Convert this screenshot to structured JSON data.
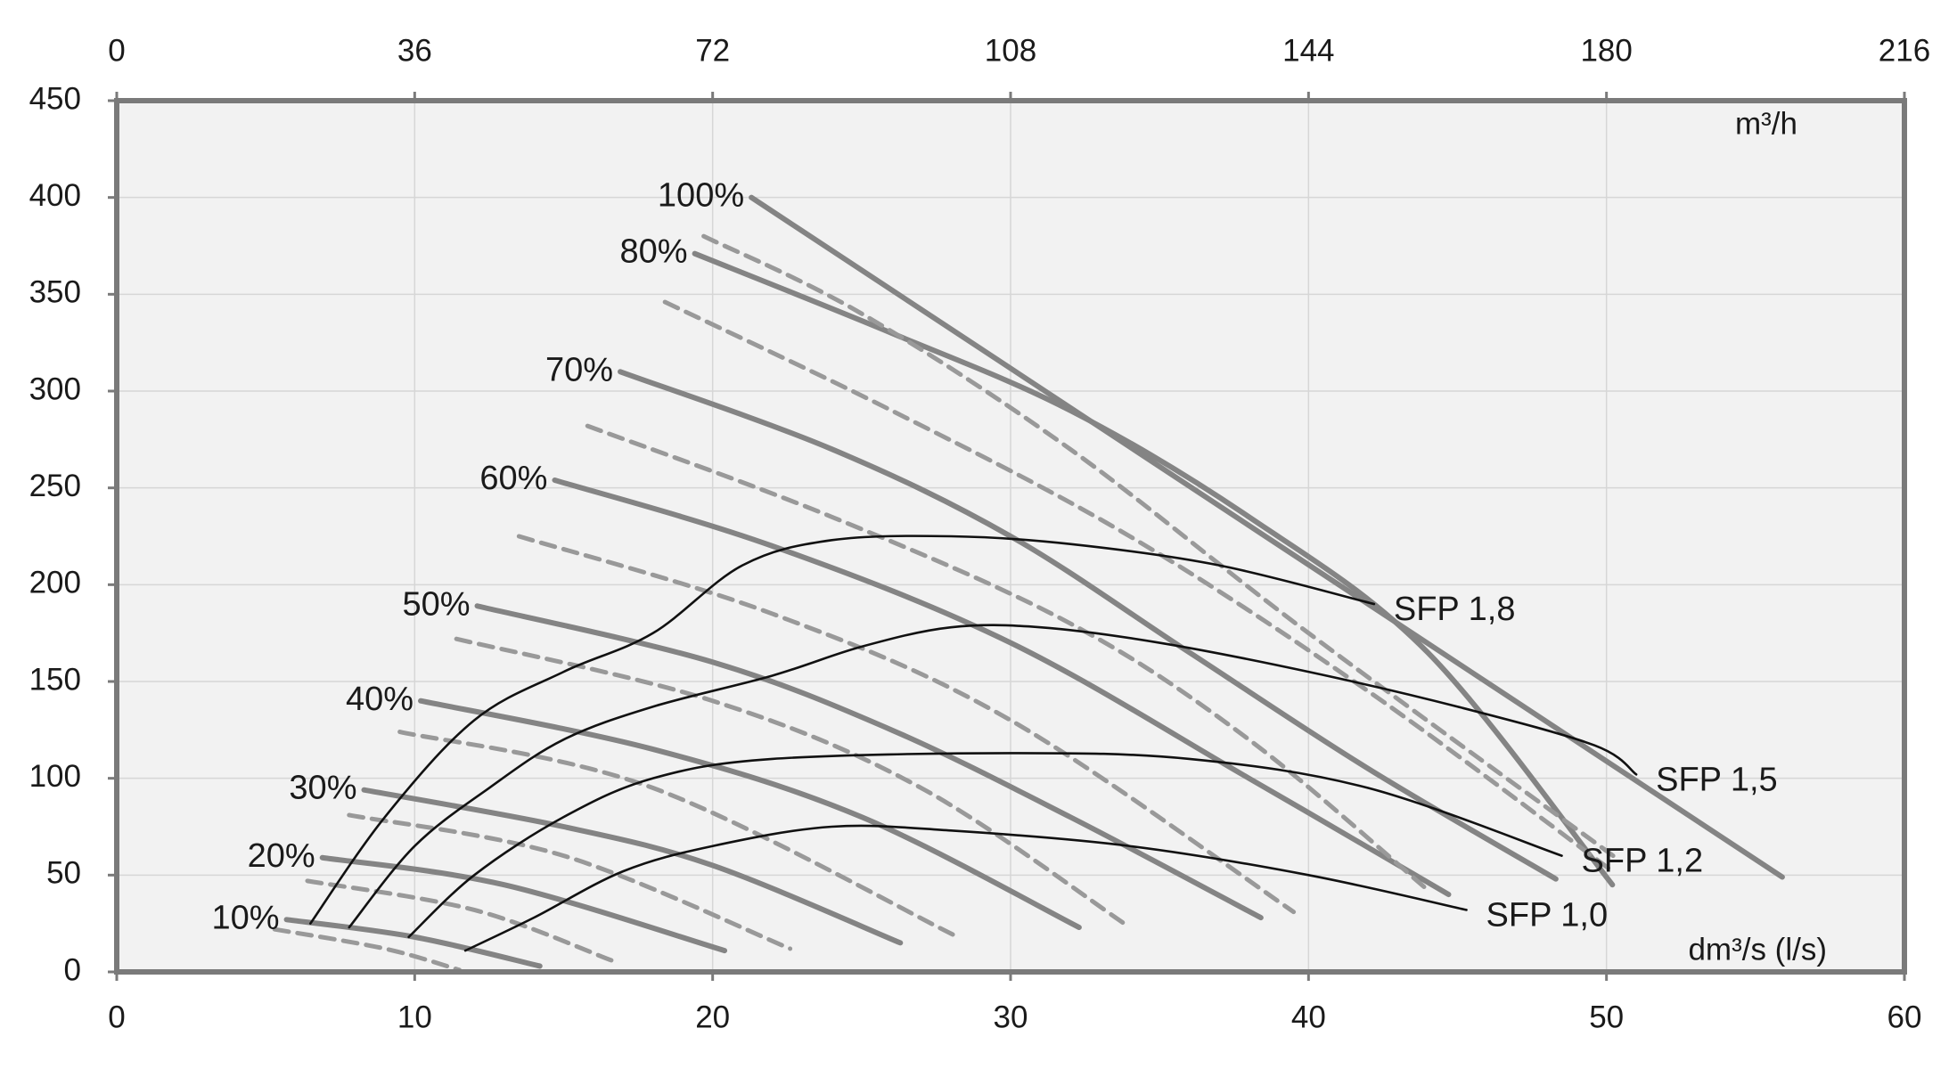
{
  "chart_data": {
    "type": "line",
    "xlabel": "dm³/s (l/s)",
    "x2label": "m³/h",
    "xlim": [
      0,
      60
    ],
    "xticks": [
      0,
      10,
      20,
      30,
      40,
      50,
      60
    ],
    "x2lim": [
      0,
      216
    ],
    "x2ticks": [
      0,
      36,
      72,
      108,
      144,
      180,
      216
    ],
    "ylim": [
      0,
      450
    ],
    "yticks": [
      0,
      50,
      100,
      150,
      200,
      250,
      300,
      350,
      400,
      450
    ],
    "grid": true,
    "series": [
      {
        "name": "100%",
        "color": "#848484",
        "style": "solid",
        "x": [
          21.3,
          55.9
        ],
        "values": [
          400,
          49
        ]
      },
      {
        "name": "80%",
        "color": "#848484",
        "style": "solid",
        "x": [
          19.4,
          26,
          32,
          38,
          44,
          50.2
        ],
        "values": [
          371,
          330,
          290,
          235,
          165,
          45
        ]
      },
      {
        "name": "70%",
        "color": "#848484",
        "style": "solid",
        "x": [
          16.9,
          24,
          30,
          36,
          42,
          48.3
        ],
        "values": [
          310,
          270,
          225,
          165,
          105,
          48
        ]
      },
      {
        "name": "60%",
        "color": "#848484",
        "style": "solid",
        "x": [
          14.7,
          22,
          30,
          38,
          44.7
        ],
        "values": [
          254,
          220,
          170,
          100,
          40
        ]
      },
      {
        "name": "50%",
        "color": "#848484",
        "style": "solid",
        "x": [
          12.1,
          20,
          26,
          32,
          38.4
        ],
        "values": [
          189,
          160,
          125,
          80,
          28
        ]
      },
      {
        "name": "40%",
        "color": "#848484",
        "style": "solid",
        "x": [
          10.2,
          18,
          25,
          32.3
        ],
        "values": [
          140,
          115,
          80,
          23
        ]
      },
      {
        "name": "30%",
        "color": "#848484",
        "style": "solid",
        "x": [
          8.3,
          15,
          20,
          26.3
        ],
        "values": [
          94,
          75,
          55,
          15
        ]
      },
      {
        "name": "20%",
        "color": "#848484",
        "style": "solid",
        "x": [
          6.9,
          13,
          20.4
        ],
        "values": [
          59,
          45,
          11
        ]
      },
      {
        "name": "10%",
        "color": "#848484",
        "style": "solid",
        "x": [
          5.7,
          10,
          14.2
        ],
        "values": [
          27,
          18,
          3
        ]
      },
      {
        "color": "#999999",
        "style": "dashed",
        "x": [
          19.7,
          25,
          32,
          40,
          50.4
        ],
        "values": [
          380,
          340,
          270,
          175,
          58
        ]
      },
      {
        "color": "#999999",
        "style": "dashed",
        "x": [
          18.4,
          26,
          34,
          42,
          50.2
        ],
        "values": [
          346,
          290,
          225,
          145,
          52
        ]
      },
      {
        "color": "#999999",
        "style": "dashed",
        "x": [
          15.8,
          24,
          32,
          38,
          44.1
        ],
        "values": [
          282,
          235,
          180,
          120,
          41
        ]
      },
      {
        "color": "#999999",
        "style": "dashed",
        "x": [
          13.5,
          22,
          30,
          39.5
        ],
        "values": [
          225,
          185,
          130,
          31
        ]
      },
      {
        "color": "#999999",
        "style": "dashed",
        "x": [
          11.4,
          20,
          27,
          34
        ],
        "values": [
          172,
          140,
          95,
          23
        ]
      },
      {
        "color": "#999999",
        "style": "dashed",
        "x": [
          9.5,
          18,
          28.1
        ],
        "values": [
          124,
          95,
          19
        ]
      },
      {
        "color": "#999999",
        "style": "dashed",
        "x": [
          7.8,
          15,
          22.6
        ],
        "values": [
          81,
          60,
          12
        ]
      },
      {
        "color": "#999999",
        "style": "dashed",
        "x": [
          6.4,
          12,
          16.6
        ],
        "values": [
          47,
          32,
          6
        ]
      },
      {
        "color": "#999999",
        "style": "dashed",
        "x": [
          5.3,
          9,
          11.5
        ],
        "values": [
          22,
          12,
          1
        ]
      },
      {
        "name": "SFP 1,8",
        "color": "#111111",
        "style": "thin",
        "x": [
          6.5,
          9,
          12,
          15,
          18,
          21,
          24,
          28,
          32,
          37,
          42.2
        ],
        "values": [
          25,
          80,
          130,
          155,
          175,
          210,
          223,
          225,
          221,
          210,
          190
        ]
      },
      {
        "name": "SFP 1,5",
        "color": "#111111",
        "style": "thin",
        "x": [
          7.8,
          10,
          12.5,
          15,
          18,
          22,
          25,
          28,
          31,
          35,
          40,
          45,
          49.6,
          51
        ],
        "values": [
          23,
          65,
          95,
          120,
          137,
          153,
          168,
          178,
          178,
          170,
          155,
          137,
          117,
          102
        ]
      },
      {
        "name": "SFP 1,2",
        "color": "#111111",
        "style": "thin",
        "x": [
          9.8,
          12,
          15,
          18,
          22,
          30,
          36,
          42,
          48.5
        ],
        "values": [
          18,
          50,
          80,
          100,
          110,
          113,
          110,
          95,
          60
        ]
      },
      {
        "name": "SFP 1,0",
        "color": "#111111",
        "style": "thin",
        "x": [
          11.7,
          14,
          17,
          20,
          24,
          28,
          34,
          40,
          45.3
        ],
        "values": [
          11,
          28,
          52,
          65,
          75,
          73,
          65,
          50,
          32
        ]
      }
    ]
  }
}
